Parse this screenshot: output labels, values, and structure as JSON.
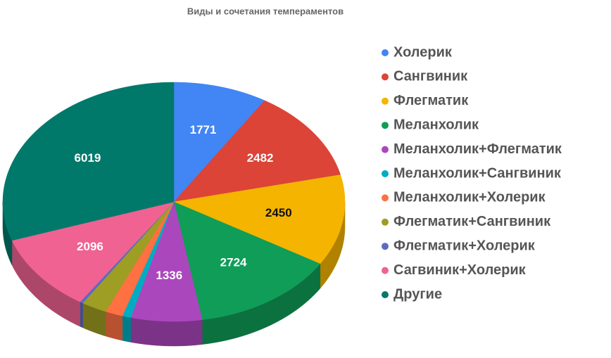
{
  "chart_data": {
    "type": "pie3d",
    "title": "Виды и сочетания темпераментов",
    "categories": [
      "Холерик",
      "Сангвиник",
      "Флегматик",
      "Меланхолик",
      "Меланхолик+Флегматик",
      "Меланхолик+Сангвиник",
      "Меланхолик+Холерик",
      "Флегматик+Сангвиник",
      "Флегматик+Холерик",
      "Сагвиник+Холерик",
      "Другие"
    ],
    "values": [
      1771,
      2482,
      2450,
      2724,
      1336,
      160,
      330,
      480,
      60,
      2096,
      6019
    ],
    "colors": [
      "#4285f4",
      "#db4437",
      "#f4b400",
      "#0f9d58",
      "#ab47bc",
      "#00acc1",
      "#ff7043",
      "#9e9d24",
      "#5c6bc0",
      "#f06292",
      "#00796b"
    ],
    "legend": "right"
  }
}
